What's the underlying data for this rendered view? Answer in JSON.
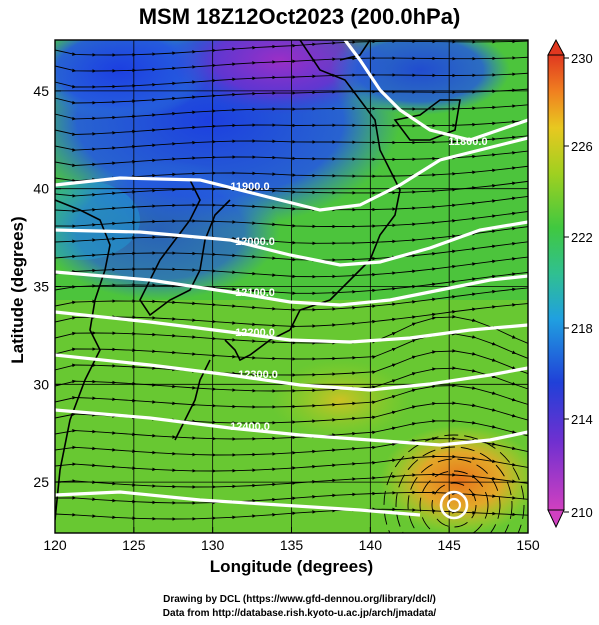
{
  "title": "MSM 18Z12Oct2023 (200.0hPa)",
  "x_axis": {
    "label": "Longitude (degrees)",
    "range": [
      120,
      150
    ],
    "ticks": [
      120,
      125,
      130,
      135,
      140,
      145,
      150
    ]
  },
  "y_axis": {
    "label": "Latitude  (degrees)",
    "range": [
      22.4,
      47.6
    ],
    "ticks": [
      25,
      30,
      35,
      40,
      45
    ]
  },
  "colorbar": {
    "min": 210,
    "max": 230,
    "tick_labels": [
      "230",
      "226",
      "222",
      "218",
      "214",
      "210"
    ],
    "colors": [
      "#b040c0",
      "#2040d0",
      "#20b0e0",
      "#30c070",
      "#80d020",
      "#d8d020",
      "#f0a020",
      "#f06010",
      "#e03020"
    ]
  },
  "contours": {
    "color": "#ffffff",
    "labels": [
      "11800.0",
      "11900.0",
      "12000.0",
      "12100.0",
      "12200.0",
      "12300.0",
      "12400.0"
    ]
  },
  "grid": true,
  "streamlines": true,
  "footer": {
    "line1": "Drawing by DCL (https://www.gfd-dennou.org/library/dcl/)",
    "line2": "Data from http://database.rish.kyoto-u.ac.jp/arch/jmadata/"
  }
}
